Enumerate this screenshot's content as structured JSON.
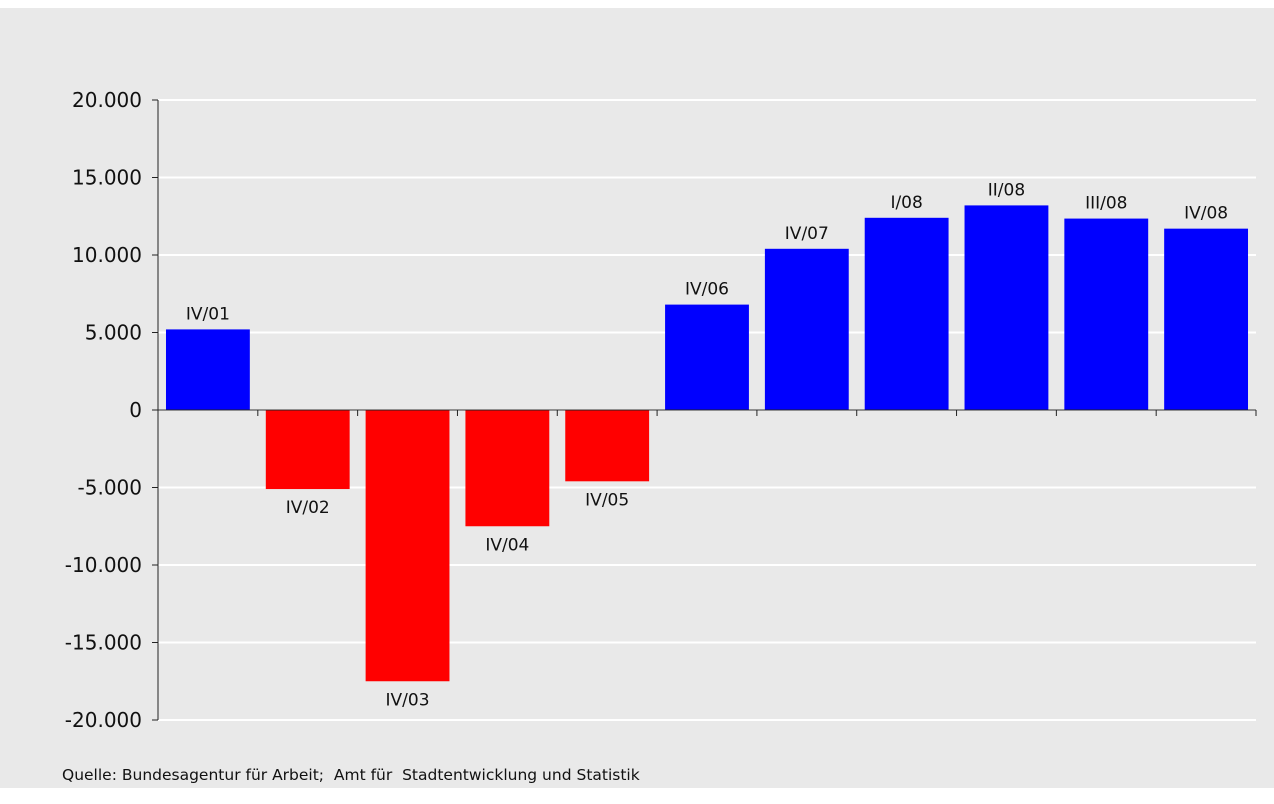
{
  "chart_data": {
    "type": "bar",
    "title": "",
    "xlabel": "",
    "ylabel": "",
    "categories": [
      "IV/01",
      "IV/02",
      "IV/03",
      "IV/04",
      "IV/05",
      "IV/06",
      "IV/07",
      "I/08",
      "II/08",
      "III/08",
      "IV/08"
    ],
    "values": [
      5200,
      -5100,
      -17500,
      -7500,
      -4600,
      6800,
      10400,
      12400,
      13200,
      12350,
      11700
    ],
    "ylim": [
      -20000,
      20000
    ],
    "yticks": [
      20000,
      15000,
      10000,
      5000,
      0,
      -5000,
      -10000,
      -15000,
      -20000
    ],
    "ytick_labels": [
      "20.000",
      "15.000",
      "10.000",
      "5.000",
      "0",
      "-5.000",
      "-10.000",
      "-15.000",
      "-20.000"
    ],
    "grid": true,
    "legend": "none",
    "colors": {
      "positive": "#0000ff",
      "negative": "#ff0000",
      "background": "#e9e9e9",
      "gridline": "#ffffff"
    }
  },
  "source_note": "Quelle: Bundesagentur für Arbeit;  Amt für  Stadtentwicklung und Statistik"
}
